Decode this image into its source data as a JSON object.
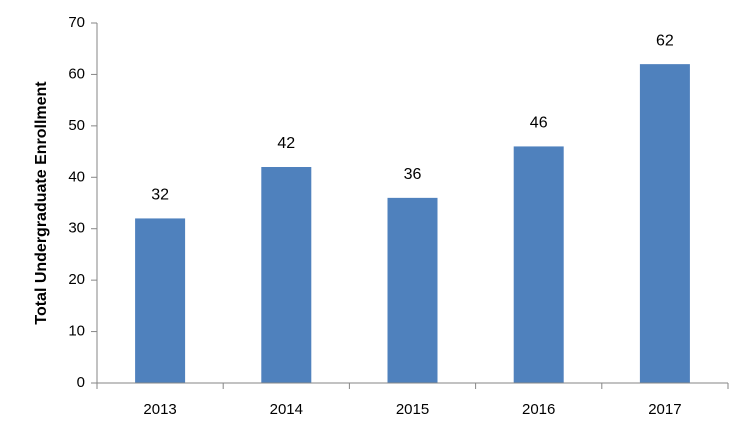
{
  "chart_data": {
    "type": "bar",
    "y_label": "Total Undergraduate Enrollment",
    "categories": [
      "2013",
      "2014",
      "2015",
      "2016",
      "2017"
    ],
    "values": [
      32,
      42,
      36,
      46,
      62
    ],
    "color": "#4f81bd",
    "ylim": [
      0,
      70
    ],
    "yticks": [
      0,
      10,
      20,
      30,
      40,
      50,
      60,
      70
    ],
    "grid": false
  }
}
